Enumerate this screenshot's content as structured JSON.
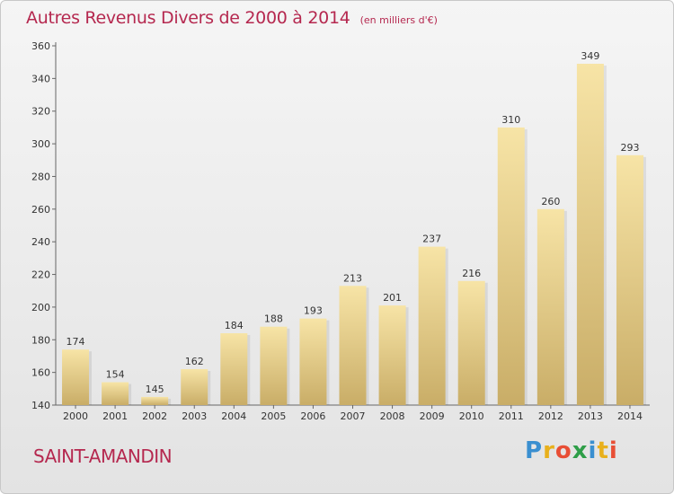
{
  "title": "Autres Revenus Divers de 2000 à 2014",
  "subtitle": "(en milliers d'€)",
  "place": "SAINT-AMANDIN",
  "brand": {
    "letters": [
      "P",
      "r",
      "o",
      "x",
      "i",
      "t",
      "i"
    ],
    "colors": [
      "#3a8fd0",
      "#e8b01c",
      "#e84e35",
      "#2e9e48",
      "#3a8fd0",
      "#e8b01c",
      "#e84e35"
    ]
  },
  "colors": {
    "accent": "#b5284f",
    "bar_top": "#f7e4a6",
    "bar_bottom": "#c9ad67"
  },
  "chart_data": {
    "type": "bar",
    "categories": [
      "2000",
      "2001",
      "2002",
      "2003",
      "2004",
      "2005",
      "2006",
      "2007",
      "2008",
      "2009",
      "2010",
      "2011",
      "2012",
      "2013",
      "2014"
    ],
    "values": [
      174,
      154,
      145,
      162,
      184,
      188,
      193,
      213,
      201,
      237,
      216,
      310,
      260,
      349,
      293
    ],
    "ylim": [
      140,
      360
    ],
    "yticks": [
      140,
      160,
      180,
      200,
      220,
      240,
      260,
      280,
      300,
      320,
      340,
      360
    ],
    "grid": false
  }
}
